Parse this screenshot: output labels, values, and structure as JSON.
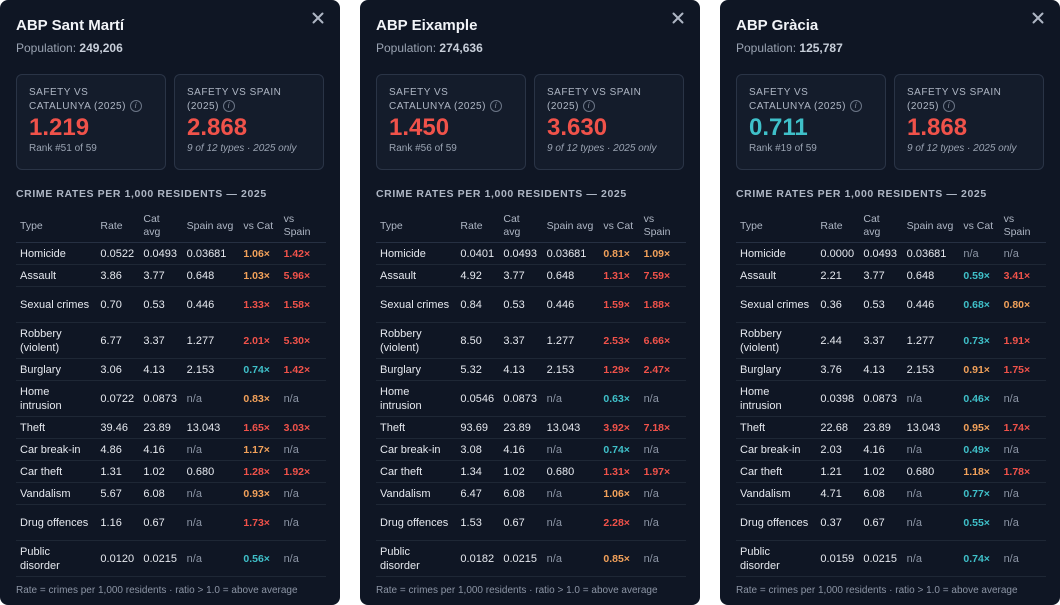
{
  "colors": {
    "card_bg": "#0f1624",
    "high": "#f0524a",
    "mid": "#f2a15a",
    "low": "#3fc0c9",
    "na": "#8c95a5"
  },
  "icons": {
    "close": "close-icon",
    "info": "info-icon"
  },
  "cards": [
    {
      "title": "ABP Sant Martí",
      "population_label": "Population:",
      "population": "249,206",
      "cat_box": {
        "label": "SAFETY VS CATALUNYA (2025)",
        "value": "1.219",
        "level": "high",
        "sub": "Rank #51 of 59"
      },
      "spain_box": {
        "label": "SAFETY VS SPAIN (2025)",
        "value": "2.868",
        "level": "high",
        "sub": "9 of 12 types · 2025 only"
      },
      "section_title": "CRIME RATES PER 1,000 RESIDENTS — 2025",
      "headers": [
        "Type",
        "Rate",
        "Cat avg",
        "Spain avg",
        "vs Cat",
        "vs Spain"
      ],
      "rows": [
        [
          "Homicide",
          "0.0522",
          "0.0493",
          "0.03681",
          "1.06×",
          "1.42×"
        ],
        [
          "Assault",
          "3.86",
          "3.77",
          "0.648",
          "1.03×",
          "5.96×"
        ],
        [
          "Sexual crimes",
          "0.70",
          "0.53",
          "0.446",
          "1.33×",
          "1.58×"
        ],
        [
          "Robbery (violent)",
          "6.77",
          "3.37",
          "1.277",
          "2.01×",
          "5.30×"
        ],
        [
          "Burglary",
          "3.06",
          "4.13",
          "2.153",
          "0.74×",
          "1.42×"
        ],
        [
          "Home intrusion",
          "0.0722",
          "0.0873",
          "n/a",
          "0.83×",
          "n/a"
        ],
        [
          "Theft",
          "39.46",
          "23.89",
          "13.043",
          "1.65×",
          "3.03×"
        ],
        [
          "Car break-in",
          "4.86",
          "4.16",
          "n/a",
          "1.17×",
          "n/a"
        ],
        [
          "Car theft",
          "1.31",
          "1.02",
          "0.680",
          "1.28×",
          "1.92×"
        ],
        [
          "Vandalism",
          "5.67",
          "6.08",
          "n/a",
          "0.93×",
          "n/a"
        ],
        [
          "Drug offences",
          "1.16",
          "0.67",
          "n/a",
          "1.73×",
          "n/a"
        ],
        [
          "Public disorder",
          "0.0120",
          "0.0215",
          "n/a",
          "0.56×",
          "n/a"
        ]
      ],
      "footnote": "Rate = crimes per 1,000 residents · ratio > 1.0 = above average"
    },
    {
      "title": "ABP Eixample",
      "population_label": "Population:",
      "population": "274,636",
      "cat_box": {
        "label": "SAFETY VS CATALUNYA (2025)",
        "value": "1.450",
        "level": "high",
        "sub": "Rank #56 of 59"
      },
      "spain_box": {
        "label": "SAFETY VS SPAIN (2025)",
        "value": "3.630",
        "level": "high",
        "sub": "9 of 12 types · 2025 only"
      },
      "section_title": "CRIME RATES PER 1,000 RESIDENTS — 2025",
      "headers": [
        "Type",
        "Rate",
        "Cat avg",
        "Spain avg",
        "vs Cat",
        "vs Spain"
      ],
      "rows": [
        [
          "Homicide",
          "0.0401",
          "0.0493",
          "0.03681",
          "0.81×",
          "1.09×"
        ],
        [
          "Assault",
          "4.92",
          "3.77",
          "0.648",
          "1.31×",
          "7.59×"
        ],
        [
          "Sexual crimes",
          "0.84",
          "0.53",
          "0.446",
          "1.59×",
          "1.88×"
        ],
        [
          "Robbery (violent)",
          "8.50",
          "3.37",
          "1.277",
          "2.53×",
          "6.66×"
        ],
        [
          "Burglary",
          "5.32",
          "4.13",
          "2.153",
          "1.29×",
          "2.47×"
        ],
        [
          "Home intrusion",
          "0.0546",
          "0.0873",
          "n/a",
          "0.63×",
          "n/a"
        ],
        [
          "Theft",
          "93.69",
          "23.89",
          "13.043",
          "3.92×",
          "7.18×"
        ],
        [
          "Car break-in",
          "3.08",
          "4.16",
          "n/a",
          "0.74×",
          "n/a"
        ],
        [
          "Car theft",
          "1.34",
          "1.02",
          "0.680",
          "1.31×",
          "1.97×"
        ],
        [
          "Vandalism",
          "6.47",
          "6.08",
          "n/a",
          "1.06×",
          "n/a"
        ],
        [
          "Drug offences",
          "1.53",
          "0.67",
          "n/a",
          "2.28×",
          "n/a"
        ],
        [
          "Public disorder",
          "0.0182",
          "0.0215",
          "n/a",
          "0.85×",
          "n/a"
        ]
      ],
      "footnote": "Rate = crimes per 1,000 residents · ratio > 1.0 = above average"
    },
    {
      "title": "ABP Gràcia",
      "population_label": "Population:",
      "population": "125,787",
      "cat_box": {
        "label": "SAFETY VS CATALUNYA (2025)",
        "value": "0.711",
        "level": "low",
        "sub": "Rank #19 of 59"
      },
      "spain_box": {
        "label": "SAFETY VS SPAIN (2025)",
        "value": "1.868",
        "level": "high",
        "sub": "9 of 12 types · 2025 only"
      },
      "section_title": "CRIME RATES PER 1,000 RESIDENTS — 2025",
      "headers": [
        "Type",
        "Rate",
        "Cat avg",
        "Spain avg",
        "vs Cat",
        "vs Spain"
      ],
      "rows": [
        [
          "Homicide",
          "0.0000",
          "0.0493",
          "0.03681",
          "n/a",
          "n/a"
        ],
        [
          "Assault",
          "2.21",
          "3.77",
          "0.648",
          "0.59×",
          "3.41×"
        ],
        [
          "Sexual crimes",
          "0.36",
          "0.53",
          "0.446",
          "0.68×",
          "0.80×"
        ],
        [
          "Robbery (violent)",
          "2.44",
          "3.37",
          "1.277",
          "0.73×",
          "1.91×"
        ],
        [
          "Burglary",
          "3.76",
          "4.13",
          "2.153",
          "0.91×",
          "1.75×"
        ],
        [
          "Home intrusion",
          "0.0398",
          "0.0873",
          "n/a",
          "0.46×",
          "n/a"
        ],
        [
          "Theft",
          "22.68",
          "23.89",
          "13.043",
          "0.95×",
          "1.74×"
        ],
        [
          "Car break-in",
          "2.03",
          "4.16",
          "n/a",
          "0.49×",
          "n/a"
        ],
        [
          "Car theft",
          "1.21",
          "1.02",
          "0.680",
          "1.18×",
          "1.78×"
        ],
        [
          "Vandalism",
          "4.71",
          "6.08",
          "n/a",
          "0.77×",
          "n/a"
        ],
        [
          "Drug offences",
          "0.37",
          "0.67",
          "n/a",
          "0.55×",
          "n/a"
        ],
        [
          "Public disorder",
          "0.0159",
          "0.0215",
          "n/a",
          "0.74×",
          "n/a"
        ]
      ],
      "footnote": "Rate = crimes per 1,000 residents · ratio > 1.0 = above average"
    }
  ]
}
